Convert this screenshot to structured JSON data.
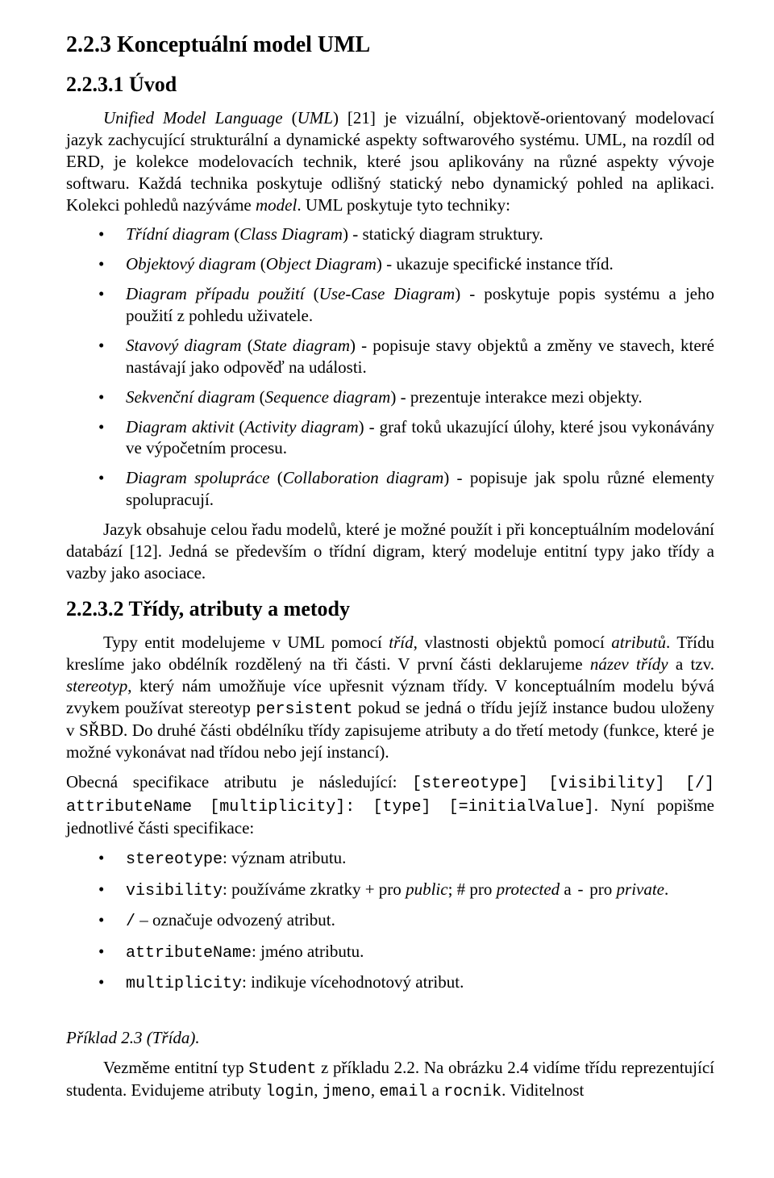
{
  "headings": {
    "h_223": "2.2.3 Konceptuální model UML",
    "h_2231": "2.2.3.1 Úvod",
    "h_2232": "2.2.3.2 Třídy, atributy a metody"
  },
  "intro": {
    "p1_a": "Unified Model Language",
    "p1_b": " (",
    "p1_c": "UML",
    "p1_d": ") [21] je vizuální, objektově-orientovaný modelovací jazyk zachycující strukturální a dynamické aspekty softwarového systému. UML, na rozdíl od ERD, je kolekce modelovacích technik, které jsou aplikovány na různé aspekty vývoje softwaru. Každá technika poskytuje odlišný statický nebo dynamický pohled na aplikaci. Kolekci pohledů nazýváme ",
    "p1_e": "model",
    "p1_f": ". UML poskytuje tyto techniky:"
  },
  "bullets1": [
    {
      "i": "Třídní diagram",
      "r": " (",
      "i2": "Class Diagram",
      "t": ") - statický diagram struktury."
    },
    {
      "i": "Objektový diagram",
      "r": " (",
      "i2": "Object Diagram",
      "t": ") - ukazuje specifické instance tříd."
    },
    {
      "i": "Diagram případu použití",
      "r": " (",
      "i2": "Use-Case Diagram",
      "t": ") - poskytuje popis systému a jeho použití z pohledu uživatele."
    },
    {
      "i": "Stavový diagram",
      "r": " (",
      "i2": "State diagram",
      "t": ") - popisuje stavy objektů a změny ve stavech, které nastávají jako odpověď na události."
    },
    {
      "i": "Sekvenční diagram",
      "r": " (",
      "i2": "Sequence diagram",
      "t": ") - prezentuje interakce mezi objekty."
    },
    {
      "i": "Diagram aktivit",
      "r": " (",
      "i2": "Activity diagram",
      "t": ") - graf toků ukazující úlohy, které jsou vykonávány ve výpočetním procesu."
    },
    {
      "i": "Diagram spolupráce",
      "r": " (",
      "i2": "Collaboration diagram",
      "t": ") - popisuje jak spolu různé elementy spolupracují."
    }
  ],
  "p_after_bullets": "Jazyk obsahuje celou řadu modelů, které je možné použít i při konceptuálním modelování databází [12]. Jedná se především o třídní digram, který modeluje entitní typy jako třídy a vazby jako asociace.",
  "classes": {
    "p1_a": "Typy entit modelujeme v UML pomocí ",
    "p1_b": "tříd",
    "p1_c": ", vlastnosti objektů pomocí ",
    "p1_d": "atributů",
    "p1_e": ". Třídu kreslíme jako obdélník rozdělený na tři části. V první části deklarujeme ",
    "p1_f": "název třídy",
    "p1_g": " a tzv. ",
    "p1_h": "stereotyp",
    "p1_i": ", který nám umožňuje více upřesnit význam třídy. V konceptuálním modelu bývá zvykem používat stereotyp ",
    "p1_code": "persistent",
    "p1_j": " pokud se jedná o třídu jejíž instance budou uloženy v SŘBD. Do druhé části obdélníku třídy zapisujeme atributy a do třetí metody (funkce, které je možné vykonávat nad třídou nebo její instancí).",
    "p2_a": "Obecná specifikace atributu je následující: ",
    "p2_code1": "[stereotype] [visibility] [/] attributeName [multiplicity]: [type] [=initialValue]",
    "p2_b": ". Nyní popišme jednotlivé části specifikace:"
  },
  "bullets2": [
    {
      "code": "stereotype",
      "t": ": význam atributu."
    },
    {
      "code": "visibility",
      "t_a": ": používáme zkratky + pro ",
      "i1": "public",
      "t_b": "; # pro ",
      "i2": "protected",
      "t_c": " a ",
      "code2": "-",
      "t_d": " pro ",
      "i3": "private",
      "t_e": "."
    },
    {
      "code": "/",
      "t": " – označuje odvozený atribut."
    },
    {
      "code": "attributeName",
      "t": ": jméno atributu."
    },
    {
      "code": "multiplicity",
      "t": ": indikuje vícehodnotový atribut."
    }
  ],
  "example": {
    "title": "Příklad 2.3 (Třída).",
    "p_a": "Vezměme entitní typ ",
    "p_code1": "Student",
    "p_b": " z příkladu 2.2. Na obrázku 2.4 vidíme třídu reprezentující studenta. Evidujeme atributy ",
    "p_code2": "login",
    "p_c": ", ",
    "p_code3": "jmeno",
    "p_d": ", ",
    "p_code4": "email",
    "p_e": " a ",
    "p_code5": "rocnik",
    "p_f": ". Viditelnost"
  }
}
